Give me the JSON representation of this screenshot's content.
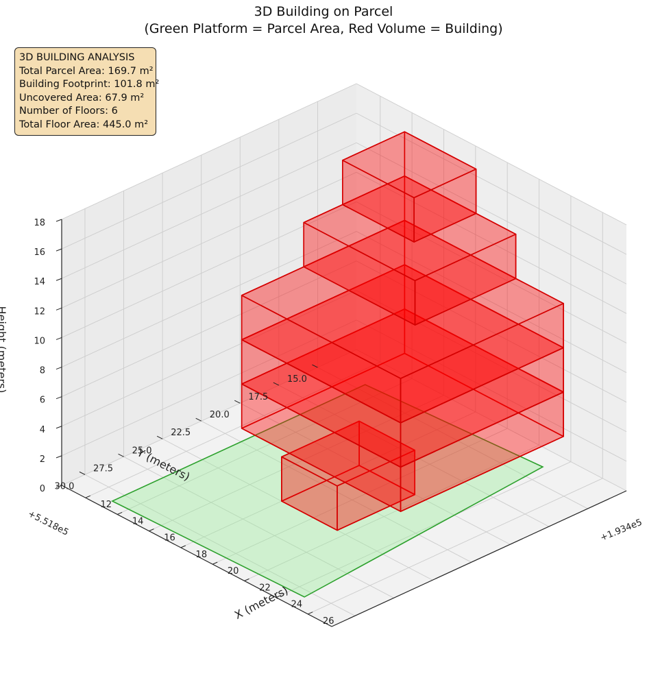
{
  "title_line1": "3D Building on Parcel",
  "title_line2": "(Green Platform = Parcel Area, Red Volume = Building)",
  "info_box": {
    "heading": "3D BUILDING ANALYSIS",
    "lines": [
      "Total Parcel Area: 169.7 m²",
      "Building Footprint: 101.8 m²",
      "Uncovered Area: 67.9 m²",
      "Number of Floors: 6",
      "Total Floor Area: 445.0 m²"
    ]
  },
  "colors": {
    "parcel_fill": "#90ee90",
    "parcel_edge": "#2ca02c",
    "building_fill": "#ff0000",
    "building_edge": "#d40000",
    "pane": "#f2f2f2",
    "grid": "#cccccc"
  },
  "chart_data": {
    "type": "3d-volume",
    "title": "3D Building on Parcel\n(Green Platform = Parcel Area, Red Volume = Building)",
    "xlabel": "X (meters)",
    "ylabel": "Y (meters)",
    "zlabel": "Height (meters)",
    "x_offset_label": "+1.934e5",
    "y_offset_label": "+5.518e5",
    "xlim": [
      10.5,
      27.5
    ],
    "ylim": [
      12.5,
      31.5
    ],
    "zlim": [
      0,
      18
    ],
    "x_ticks": [
      12,
      14,
      16,
      18,
      20,
      22,
      24,
      26
    ],
    "y_ticks": [
      15.0,
      17.5,
      20.0,
      22.5,
      25.0,
      27.5,
      30.0
    ],
    "z_ticks": [
      0,
      2,
      4,
      6,
      8,
      10,
      12,
      14,
      16,
      18
    ],
    "x_tick_labels": [
      "12",
      "14",
      "16",
      "18",
      "20",
      "22",
      "24",
      "26"
    ],
    "y_tick_labels": [
      "15.0",
      "17.5",
      "20.0",
      "22.5",
      "25.0",
      "27.5",
      "30.0"
    ],
    "z_tick_labels": [
      "0",
      "2",
      "4",
      "6",
      "8",
      "10",
      "12",
      "14",
      "16",
      "18"
    ],
    "parcel_polygon": [
      [
        13.0,
        14.5
      ],
      [
        23.5,
        13.8
      ],
      [
        24.8,
        30.5
      ],
      [
        13.0,
        30.8
      ]
    ],
    "floor_height": 3,
    "floors": [
      {
        "floor": 1,
        "z0": 0,
        "z1": 3,
        "outline": [
          [
            18.0,
            20.0
          ],
          [
            21.5,
            20.0
          ],
          [
            21.5,
            25.0
          ],
          [
            18.0,
            25.0
          ]
        ]
      },
      {
        "floor": 2,
        "z0": 3,
        "z1": 6,
        "outline": [
          [
            15.0,
            14.0
          ],
          [
            25.0,
            14.0
          ],
          [
            25.0,
            24.5
          ],
          [
            15.0,
            24.5
          ]
        ]
      },
      {
        "floor": 3,
        "z0": 6,
        "z1": 9,
        "outline": [
          [
            15.0,
            14.0
          ],
          [
            25.0,
            14.0
          ],
          [
            25.0,
            24.5
          ],
          [
            15.0,
            24.5
          ]
        ]
      },
      {
        "floor": 4,
        "z0": 9,
        "z1": 12,
        "outline": [
          [
            15.0,
            14.0
          ],
          [
            25.0,
            14.0
          ],
          [
            25.0,
            24.5
          ],
          [
            15.0,
            24.5
          ]
        ]
      },
      {
        "floor": 5,
        "z0": 12,
        "z1": 15,
        "outline": [
          [
            15.0,
            14.0
          ],
          [
            22.0,
            14.0
          ],
          [
            22.0,
            20.5
          ],
          [
            15.0,
            20.5
          ]
        ]
      },
      {
        "floor": 6,
        "z0": 15,
        "z1": 18,
        "outline": [
          [
            15.0,
            14.0
          ],
          [
            19.5,
            14.0
          ],
          [
            19.5,
            18.0
          ],
          [
            15.0,
            18.0
          ]
        ]
      }
    ],
    "grid": true,
    "view": {
      "elev": 30,
      "azim": 45
    }
  }
}
